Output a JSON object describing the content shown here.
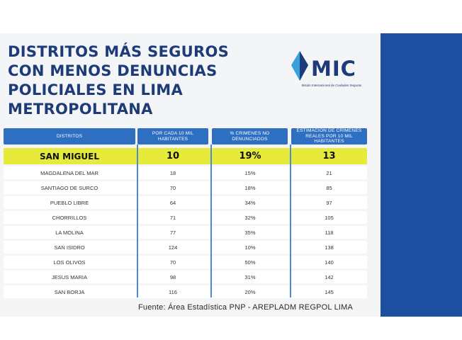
{
  "title": "DISTRITOS MÁS SEGUROS\nCON MENOS DENUNCIAS\nPOLICIALES EN LIMA\nMETROPOLITANA",
  "logo": {
    "text": "MIC",
    "subtitle": "Misión Internacional de Ciudades Seguras"
  },
  "table": {
    "headers": [
      "DISTRITOS",
      "POR CADA 10 MIL HABITANTES",
      "% CRIMENES NO DENUNCIADOS",
      "ESTIMACIÓN DE CRÍMENES REALES POR 10 MIL HABITANTES"
    ],
    "featured": {
      "distrito": "SAN MIGUEL",
      "por_10mil": "10",
      "no_denunciados": "19%",
      "estimacion": "13"
    },
    "rows": [
      {
        "distrito": "MAGDALENA DEL MAR",
        "por_10mil": "18",
        "no_denunciados": "15%",
        "estimacion": "21"
      },
      {
        "distrito": "SANTIAGO DE SURCO",
        "por_10mil": "70",
        "no_denunciados": "18%",
        "estimacion": "85"
      },
      {
        "distrito": "PUEBLO LIBRE",
        "por_10mil": "64",
        "no_denunciados": "34%",
        "estimacion": "97"
      },
      {
        "distrito": "CHORRILLOS",
        "por_10mil": "71",
        "no_denunciados": "32%",
        "estimacion": "105"
      },
      {
        "distrito": "LA MOLINA",
        "por_10mil": "77",
        "no_denunciados": "35%",
        "estimacion": "118"
      },
      {
        "distrito": "SAN ISIDRO",
        "por_10mil": "124",
        "no_denunciados": "10%",
        "estimacion": "138"
      },
      {
        "distrito": "LOS OLIVOS",
        "por_10mil": "70",
        "no_denunciados": "50%",
        "estimacion": "140"
      },
      {
        "distrito": "JESUS MARIA",
        "por_10mil": "98",
        "no_denunciados": "31%",
        "estimacion": "142"
      },
      {
        "distrito": "SAN BORJA",
        "por_10mil": "116",
        "no_denunciados": "20%",
        "estimacion": "145"
      }
    ]
  },
  "source": "Fuente: Área Estadística PNP - AREPLADM REGPOL LIMA",
  "colors": {
    "brand_blue": "#1d3b78",
    "header_blue": "#2f6fc2",
    "highlight_yellow": "#e6ea3a",
    "background_blue": "#1d4fa0"
  }
}
